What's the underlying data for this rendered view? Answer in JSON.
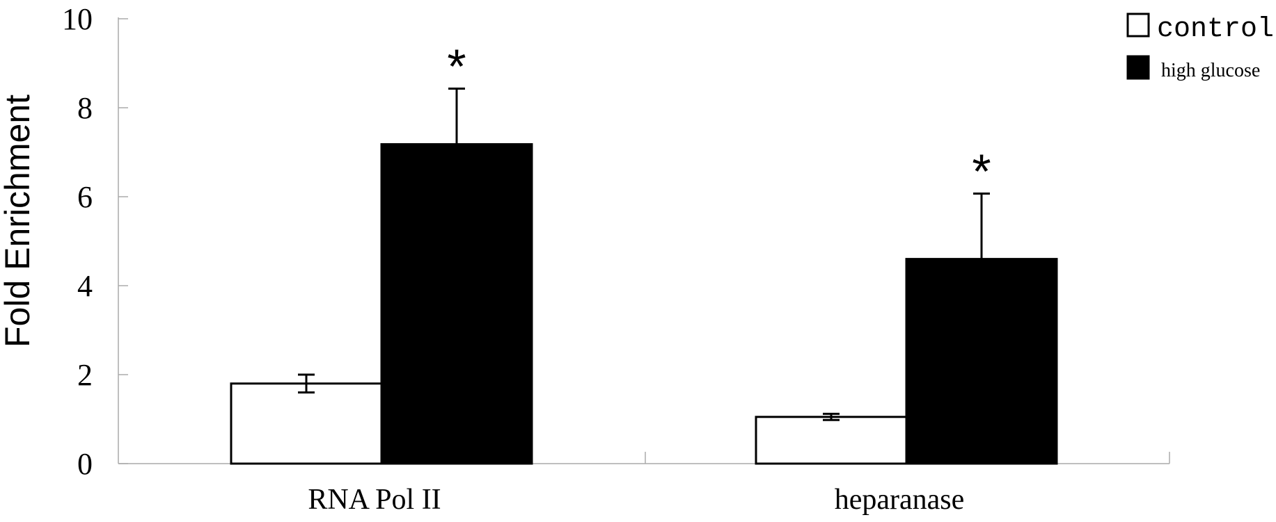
{
  "chart_data": {
    "type": "bar",
    "categories": [
      "RNA Pol II",
      "heparanase"
    ],
    "series": [
      {
        "name": "control",
        "values": [
          1.8,
          1.05
        ],
        "errors": [
          0.2,
          0.07
        ],
        "color": "#ffffff"
      },
      {
        "name": "high glucose",
        "values": [
          7.18,
          4.6
        ],
        "errors": [
          1.25,
          1.47
        ],
        "color": "#000000"
      }
    ],
    "significance": [
      "*",
      "*"
    ],
    "xlabel": "",
    "ylabel": "Fold Enrichment",
    "ylim": [
      0,
      10
    ],
    "yticks": [
      "0",
      "2",
      "4",
      "6",
      "8",
      "10"
    ],
    "grid": false,
    "legend_position": "top-right"
  }
}
